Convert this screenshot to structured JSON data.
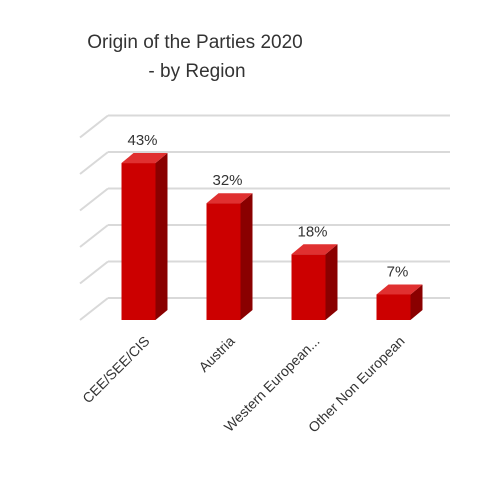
{
  "chart_data": {
    "type": "bar",
    "title": "Origin of the Parties 2020",
    "subtitle": "- by Region",
    "categories": [
      "CEE/SEE/CIS",
      "Austria",
      "Western European...",
      "Other Non European"
    ],
    "values": [
      43,
      32,
      18,
      7
    ],
    "value_labels": [
      "43%",
      "32%",
      "18%",
      "7%"
    ],
    "unit": "%",
    "ylim": [
      0,
      50
    ],
    "grid": true,
    "legend": "none",
    "style": "3d-column",
    "colors": {
      "bar_front": "#cc0000",
      "bar_side": "#8a0000",
      "bar_top": "#e03030",
      "grid": "#d9d9d9",
      "text": "#333333"
    }
  }
}
